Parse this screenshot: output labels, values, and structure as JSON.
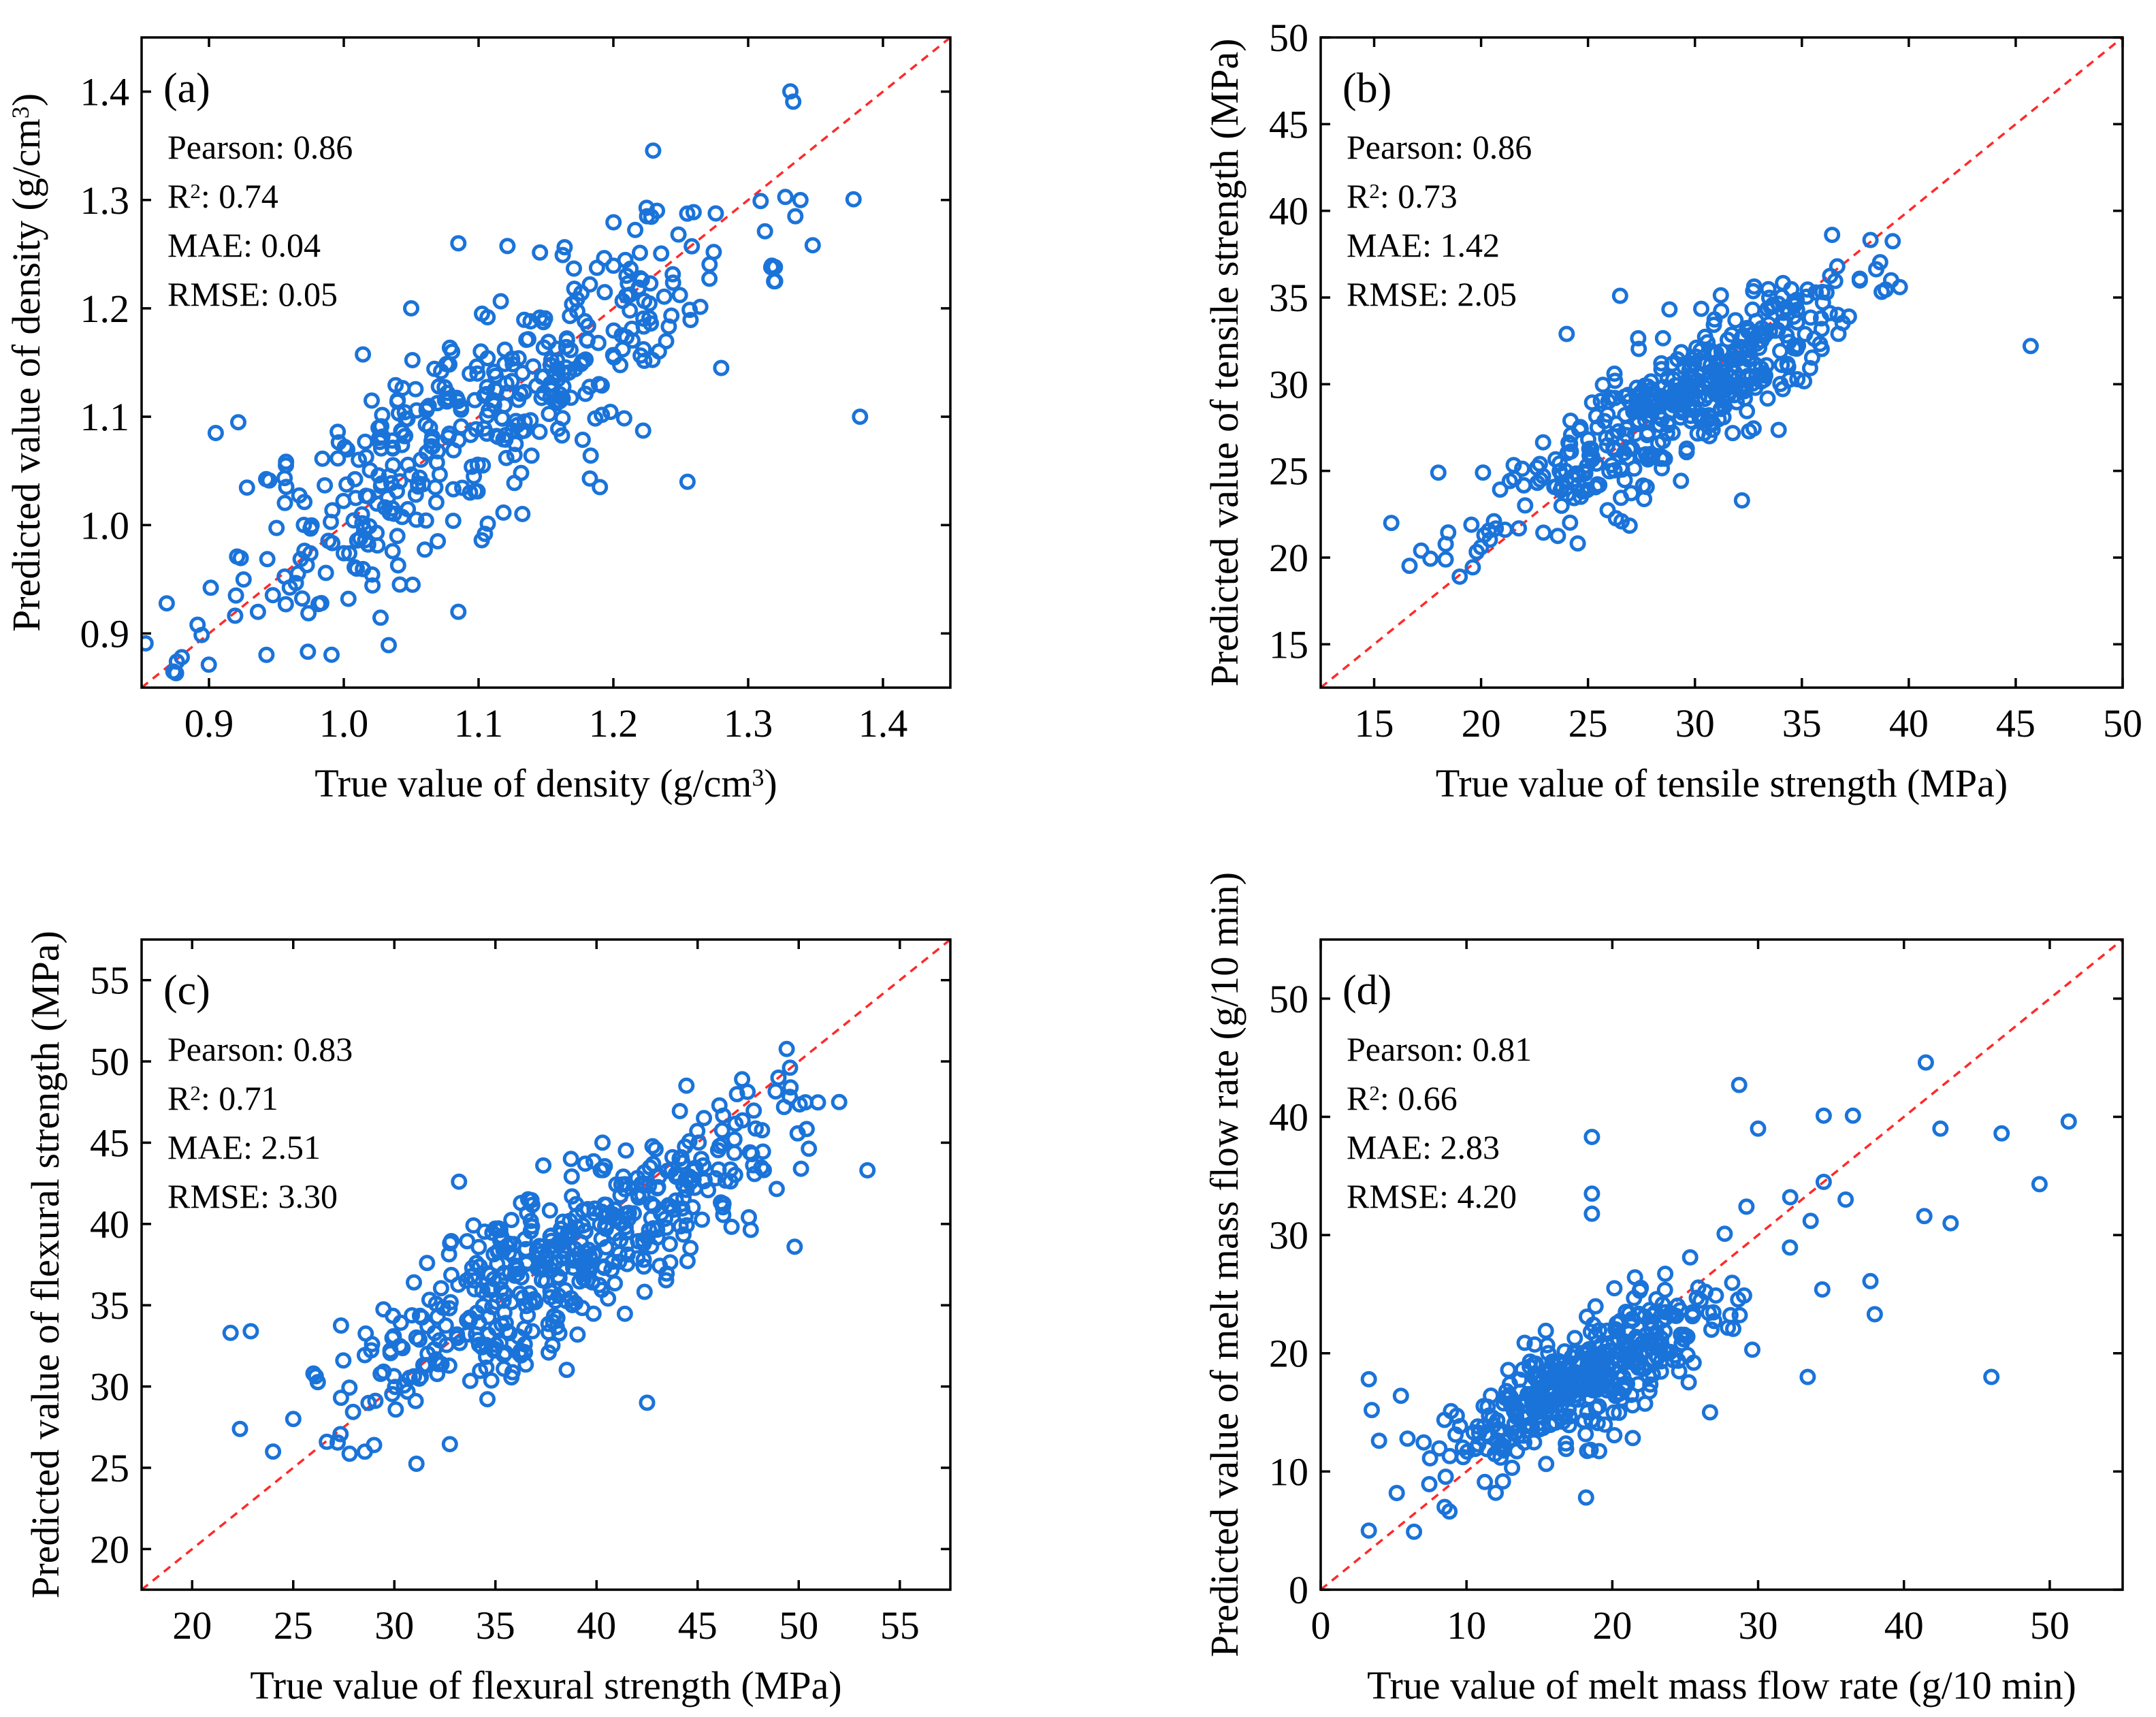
{
  "chart_data": [
    {
      "type": "scatter",
      "panel_label": "(a)",
      "xlabel": "True value of density (g/cm³)",
      "ylabel": "Predicted value of density (g/cm³)",
      "xlim": [
        0.85,
        1.45
      ],
      "ylim": [
        0.85,
        1.45
      ],
      "xticks": [
        0.9,
        1.0,
        1.1,
        1.2,
        1.3,
        1.4
      ],
      "yticks": [
        0.9,
        1.0,
        1.1,
        1.2,
        1.3,
        1.4
      ],
      "tick_decimals": 1,
      "reference_line": "y = x",
      "stats": [
        "Pearson: 0.86",
        "R²: 0.74",
        "MAE: 0.04",
        "RMSE: 0.05"
      ],
      "center": [
        1.1,
        1.1
      ],
      "spread": [
        0.1,
        0.1
      ],
      "corr": 0.86,
      "n": 420,
      "seed": 11,
      "outliers": [
        [
          1.383,
          1.1
        ],
        [
          1.085,
          0.92
        ],
        [
          1.085,
          1.26
        ],
        [
          0.905,
          1.085
        ],
        [
          0.92,
          0.935
        ],
        [
          1.225,
          1.285
        ],
        [
          1.32,
          1.225
        ],
        [
          1.335,
          1.285
        ],
        [
          1.05,
          1.2
        ],
        [
          1.28,
          1.145
        ],
        [
          1.255,
          1.04
        ],
        [
          1.19,
          1.035
        ]
      ]
    },
    {
      "type": "scatter",
      "panel_label": "(b)",
      "xlabel": "True value of tensile strength (MPa)",
      "ylabel": "Predicted value of tensile strength (MPa)",
      "xlim": [
        12.5,
        50
      ],
      "ylim": [
        12.5,
        50
      ],
      "xticks": [
        15,
        20,
        25,
        30,
        35,
        40,
        45,
        50
      ],
      "yticks": [
        15,
        20,
        25,
        30,
        35,
        40,
        45,
        50
      ],
      "tick_decimals": 0,
      "reference_line": "y = x",
      "stats": [
        "Pearson: 0.86",
        "R²: 0.73",
        "MAE: 1.42",
        "RMSE: 2.05"
      ],
      "center": [
        29,
        28.8
      ],
      "spread": [
        4.2,
        3.6
      ],
      "corr": 0.86,
      "n": 430,
      "seed": 23,
      "outliers": [
        [
          45.7,
          32.2
        ],
        [
          26.5,
          35.1
        ],
        [
          24.0,
          32.9
        ],
        [
          15.8,
          22.0
        ],
        [
          17.2,
          20.4
        ],
        [
          19.0,
          18.9
        ],
        [
          32.2,
          23.3
        ],
        [
          37.2,
          33.9
        ],
        [
          18.0,
          24.9
        ],
        [
          20.0,
          20.6
        ]
      ]
    },
    {
      "type": "scatter",
      "panel_label": "(c)",
      "xlabel": "True value of flexural strength (MPa)",
      "ylabel": "Predicted value of flexural strength (MPa)",
      "xlim": [
        17.5,
        57.5
      ],
      "ylim": [
        17.5,
        57.5
      ],
      "xticks": [
        20,
        25,
        30,
        35,
        40,
        45,
        50,
        55
      ],
      "yticks": [
        20,
        25,
        30,
        35,
        40,
        45,
        50,
        55
      ],
      "tick_decimals": 0,
      "reference_line": "y = x",
      "stats": [
        "Pearson: 0.83",
        "R²: 0.71",
        "MAE: 2.51",
        "RMSE: 3.30"
      ],
      "center": [
        38.5,
        38.2
      ],
      "spread": [
        5.2,
        4.6
      ],
      "corr": 0.83,
      "n": 480,
      "seed": 37,
      "outliers": [
        [
          53.4,
          43.3
        ],
        [
          52.0,
          47.5
        ],
        [
          49.8,
          38.6
        ],
        [
          21.9,
          33.3
        ],
        [
          22.9,
          33.4
        ],
        [
          24.0,
          26.0
        ],
        [
          33.2,
          42.6
        ],
        [
          42.5,
          29.0
        ],
        [
          47.2,
          48.9
        ],
        [
          29.0,
          26.4
        ],
        [
          49.0,
          49.0
        ],
        [
          25.0,
          28.0
        ]
      ]
    },
    {
      "type": "scatter",
      "panel_label": "(d)",
      "xlabel": "True value of melt mass flow rate (g/10 min)",
      "ylabel": "Predicted value of melt mass flow rate (g/10 min)",
      "xlim": [
        0,
        55
      ],
      "ylim": [
        0,
        55
      ],
      "xticks": [
        0,
        10,
        20,
        30,
        40,
        50
      ],
      "yticks": [
        0,
        10,
        20,
        30,
        40,
        50
      ],
      "tick_decimals": 0,
      "reference_line": "y = x",
      "stats": [
        "Pearson: 0.81",
        "R²: 0.66",
        "MAE: 2.83",
        "RMSE: 4.20"
      ],
      "center": [
        18.5,
        18.0
      ],
      "spread": [
        5.0,
        4.0
      ],
      "corr": 0.81,
      "n": 420,
      "seed": 53,
      "outliers": [
        [
          51.3,
          39.6
        ],
        [
          49.3,
          34.3
        ],
        [
          46.7,
          38.6
        ],
        [
          46.0,
          18.0
        ],
        [
          42.5,
          39.0
        ],
        [
          43.2,
          31.0
        ],
        [
          41.5,
          44.6
        ],
        [
          41.4,
          31.6
        ],
        [
          38.0,
          23.3
        ],
        [
          37.7,
          26.1
        ],
        [
          36.5,
          40.1
        ],
        [
          34.5,
          40.1
        ],
        [
          34.4,
          25.4
        ],
        [
          33.4,
          18.0
        ],
        [
          33.6,
          31.2
        ],
        [
          30.0,
          39.0
        ],
        [
          28.7,
          42.7
        ],
        [
          29.2,
          32.4
        ],
        [
          26.7,
          15.0
        ],
        [
          18.6,
          38.3
        ],
        [
          18.6,
          33.5
        ],
        [
          18.6,
          31.8
        ],
        [
          18.2,
          7.8
        ],
        [
          3.3,
          17.8
        ],
        [
          3.3,
          5.0
        ],
        [
          6.4,
          4.9
        ],
        [
          5.5,
          16.4
        ],
        [
          4.0,
          12.6
        ],
        [
          3.5,
          15.2
        ],
        [
          29.6,
          20.3
        ],
        [
          32.2,
          33.2
        ],
        [
          34.5,
          34.5
        ],
        [
          36.0,
          33.0
        ],
        [
          8.5,
          7.0
        ]
      ]
    }
  ]
}
